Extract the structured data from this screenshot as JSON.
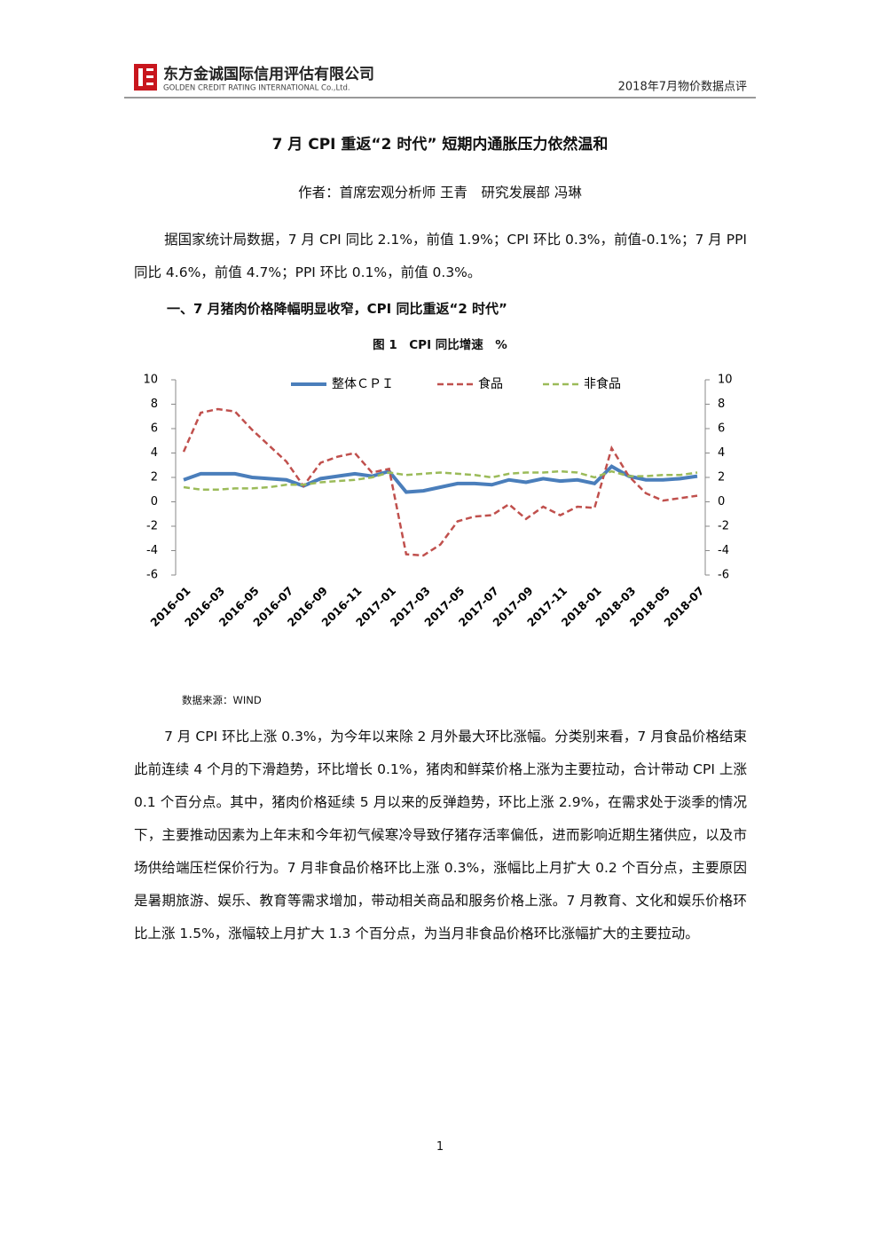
{
  "header": {
    "company": "东方金诚国际信用评估有限公司",
    "company_en": "GOLDEN CREDIT RATING INTERNATIONAL Co.,Ltd.",
    "report": "2018年7月物价数据点评"
  },
  "title": "7 月 CPI 重返“2 时代” 短期内通胀压力依然温和",
  "author": "作者：首席宏观分析师 王青　研究发展部 冯琳",
  "paragraphs": [
    "据国家统计局数据，7 月 CPI 同比 2.1%，前值 1.9%；CPI 环比 0.3%，前值-0.1%；7 月 PPI 同比 4.6%，前值 4.7%；PPI 环比 0.1%，前值 0.3%。",
    "7 月 CPI 环比上涨 0.3%，为今年以来除 2 月外最大环比涨幅。分类别来看，7 月食品价格结束此前连续 4 个月的下滑趋势，环比增长 0.1%，猪肉和鲜菜价格上涨为主要拉动，合计带动 CPI 上涨 0.1 个百分点。其中，猪肉价格延续 5 月以来的反弹趋势，环比上涨 2.9%，在需求处于淡季的情况下，主要推动因素为上年末和今年初气候寒冷导致仔猪存活率偏低，进而影响近期生猪供应，以及市场供给端压栏保价行为。7 月非食品价格环比上涨 0.3%，涨幅比上月扩大 0.2 个百分点，主要原因是暑期旅游、娱乐、教育等需求增加，带动相关商品和服务价格上涨。7 月教育、文化和娱乐价格环比上涨 1.5%，涨幅较上月扩大 1.3 个百分点，为当月非食品价格环比涨幅扩大的主要拉动。"
  ],
  "section_heading": "一、7 月猪肉价格降幅明显收窄，CPI 同比重返“2 时代”",
  "page_number": "1",
  "chart_data": {
    "type": "line",
    "title": "图 1　CPI 同比增速　%",
    "source": "数据来源：WIND",
    "categories": [
      "2016-01",
      null,
      "2016-03",
      null,
      "2016-05",
      null,
      "2016-07",
      null,
      "2016-09",
      null,
      "2016-11",
      null,
      "2017-01",
      null,
      "2017-03",
      null,
      "2017-05",
      null,
      "2017-07",
      null,
      "2017-09",
      null,
      "2017-11",
      null,
      "2018-01",
      null,
      "2018-03",
      null,
      "2018-05",
      null,
      "2018-07"
    ],
    "series": [
      {
        "name": "整体ＣＰＩ",
        "color": "#4a7ebb",
        "dash": "solid",
        "values": [
          1.8,
          2.3,
          2.3,
          2.3,
          2.0,
          1.9,
          1.8,
          1.3,
          1.9,
          2.1,
          2.3,
          2.1,
          2.5,
          0.8,
          0.9,
          1.2,
          1.5,
          1.5,
          1.4,
          1.8,
          1.6,
          1.9,
          1.7,
          1.8,
          1.5,
          2.9,
          2.1,
          1.8,
          1.8,
          1.9,
          2.1
        ]
      },
      {
        "name": "食品",
        "color": "#c0504d",
        "dash": "dashed",
        "values": [
          4.1,
          7.3,
          7.6,
          7.4,
          5.9,
          4.6,
          3.3,
          1.3,
          3.2,
          3.7,
          4.0,
          2.4,
          2.7,
          -4.3,
          -4.4,
          -3.5,
          -1.6,
          -1.2,
          -1.1,
          -0.2,
          -1.4,
          -0.4,
          -1.1,
          -0.4,
          -0.5,
          4.4,
          2.1,
          0.7,
          0.1,
          0.3,
          0.5
        ]
      },
      {
        "name": "非食品",
        "color": "#9bbb59",
        "dash": "dashed",
        "values": [
          1.2,
          1.0,
          1.0,
          1.1,
          1.1,
          1.2,
          1.4,
          1.4,
          1.6,
          1.7,
          1.8,
          2.0,
          2.4,
          2.2,
          2.3,
          2.4,
          2.3,
          2.2,
          2.0,
          2.3,
          2.4,
          2.4,
          2.5,
          2.4,
          2.0,
          2.5,
          2.1,
          2.1,
          2.2,
          2.2,
          2.4
        ]
      }
    ],
    "ylim": [
      -6,
      10
    ],
    "yticks": [
      -6,
      -4,
      -2,
      0,
      2,
      4,
      6,
      8,
      10
    ],
    "y2lim": [
      -6,
      10
    ],
    "y2ticks": [
      -6,
      -4,
      -2,
      0,
      2,
      4,
      6,
      8,
      10
    ],
    "grid": false,
    "legend": "top"
  }
}
